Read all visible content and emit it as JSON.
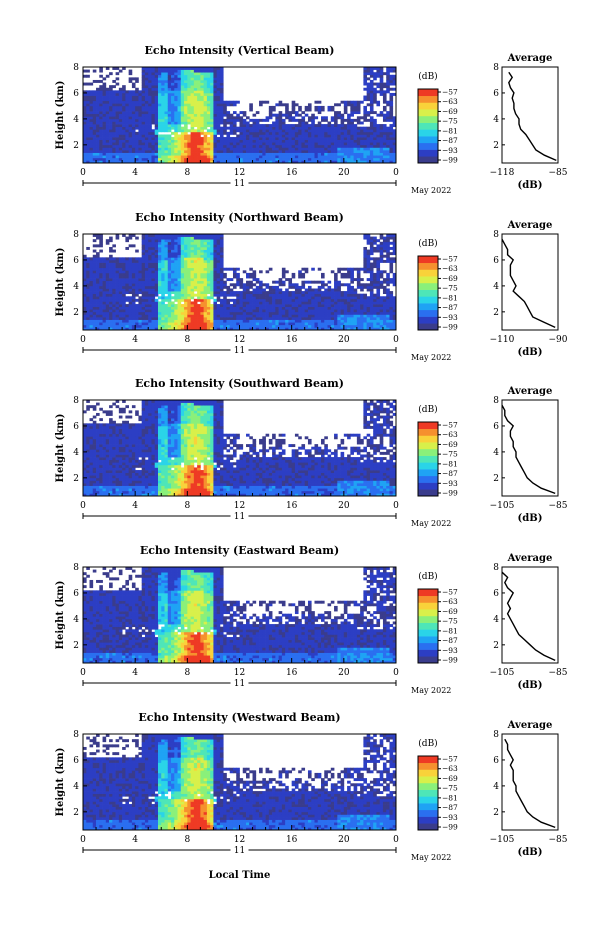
{
  "figure": {
    "panel_ylabel": "Height (km)",
    "xlabel": "Local Time",
    "date_label": "May 2022",
    "avg_xlabel": "(dB)",
    "colorbar_unit": "(dB)"
  },
  "colors": {
    "white": "#ffffff",
    "colormap": [
      "#3a3c8c",
      "#2c3ec4",
      "#2a6ff0",
      "#1fa3f4",
      "#2ad4e8",
      "#4ee6b8",
      "#8af07a",
      "#d8f04a",
      "#f9d23a",
      "#f6902e",
      "#ee3a24"
    ]
  },
  "chart_data": [
    {
      "type": "heatmap",
      "title": "Echo Intensity (Vertical Beam)",
      "ylabel": "Height (km)",
      "x_ticks": [
        "0",
        "4",
        "8",
        "12",
        "16",
        "20",
        "0"
      ],
      "x_sublabel": "11",
      "date_label": "May 2022",
      "xlim_hours": [
        0,
        24
      ],
      "ylim_km": [
        0.6,
        8
      ],
      "y_ticks": [
        "2",
        "4",
        "6",
        "8"
      ],
      "colorbar": {
        "unit": "(dB)",
        "ticks": [
          "−57",
          "−63",
          "−69",
          "−75",
          "−81",
          "−87",
          "−93",
          "−99"
        ]
      },
      "average_profile": {
        "title": "Average",
        "xlabel": "(dB)",
        "x_ticks": [
          "−118",
          "−85"
        ],
        "xlim": [
          -118,
          -85
        ],
        "y_ticks": [
          "2",
          "4",
          "6",
          "8"
        ],
        "height_km": [
          0.8,
          1.2,
          1.6,
          2.0,
          2.4,
          2.8,
          3.2,
          3.6,
          4.0,
          4.4,
          4.8,
          5.2,
          5.6,
          6.0,
          6.4,
          6.8,
          7.2,
          7.6
        ],
        "db": [
          -86,
          -93,
          -98,
          -100,
          -102,
          -104,
          -107,
          -108,
          -108,
          -110,
          -111,
          -111,
          -112,
          -111,
          -113,
          -114,
          -112,
          -114
        ]
      }
    },
    {
      "type": "heatmap",
      "title": "Echo Intensity (Northward Beam)",
      "ylabel": "Height (km)",
      "x_ticks": [
        "0",
        "4",
        "8",
        "12",
        "16",
        "20",
        "0"
      ],
      "x_sublabel": "11",
      "date_label": "May 2022",
      "xlim_hours": [
        0,
        24
      ],
      "ylim_km": [
        0.6,
        8
      ],
      "y_ticks": [
        "2",
        "4",
        "6",
        "8"
      ],
      "colorbar": {
        "unit": "(dB)",
        "ticks": [
          "−57",
          "−63",
          "−69",
          "−75",
          "−81",
          "−87",
          "−93",
          "−99"
        ]
      },
      "average_profile": {
        "title": "Average",
        "xlabel": "(dB)",
        "x_ticks": [
          "−110",
          "−90"
        ],
        "xlim": [
          -110,
          -90
        ],
        "y_ticks": [
          "2",
          "4",
          "6",
          "8"
        ],
        "height_km": [
          0.8,
          1.2,
          1.6,
          2.0,
          2.4,
          2.8,
          3.2,
          3.6,
          4.0,
          4.4,
          4.8,
          5.2,
          5.6,
          6.0,
          6.4,
          6.8,
          7.2,
          7.6
        ],
        "db": [
          -91,
          -95,
          -99,
          -100,
          -101,
          -102,
          -104,
          -106,
          -105,
          -106,
          -107,
          -107,
          -107,
          -106,
          -108,
          -108,
          -109,
          -110
        ]
      }
    },
    {
      "type": "heatmap",
      "title": "Echo Intensity (Southward Beam)",
      "ylabel": "Height (km)",
      "x_ticks": [
        "0",
        "4",
        "8",
        "12",
        "16",
        "20",
        "0"
      ],
      "x_sublabel": "11",
      "date_label": "May 2022",
      "xlim_hours": [
        0,
        24
      ],
      "ylim_km": [
        0.6,
        8
      ],
      "y_ticks": [
        "2",
        "4",
        "6",
        "8"
      ],
      "colorbar": {
        "unit": "(dB)",
        "ticks": [
          "−57",
          "−63",
          "−69",
          "−75",
          "−81",
          "−87",
          "−93",
          "−99"
        ]
      },
      "average_profile": {
        "title": "Average",
        "xlabel": "(dB)",
        "x_ticks": [
          "−105",
          "−85"
        ],
        "xlim": [
          -105,
          -85
        ],
        "y_ticks": [
          "2",
          "4",
          "6",
          "8"
        ],
        "height_km": [
          0.8,
          1.2,
          1.6,
          2.0,
          2.4,
          2.8,
          3.2,
          3.6,
          4.0,
          4.4,
          4.8,
          5.2,
          5.6,
          6.0,
          6.4,
          6.8,
          7.2,
          7.6
        ],
        "db": [
          -86,
          -91,
          -94,
          -96,
          -97,
          -98,
          -99,
          -100,
          -100,
          -101,
          -101,
          -102,
          -102,
          -101,
          -103,
          -104,
          -104,
          -105
        ]
      }
    },
    {
      "type": "heatmap",
      "title": "Echo Intensity (Eastward Beam)",
      "ylabel": "Height (km)",
      "x_ticks": [
        "0",
        "4",
        "8",
        "12",
        "16",
        "20",
        "0"
      ],
      "x_sublabel": "11",
      "date_label": "May 2022",
      "xlim_hours": [
        0,
        24
      ],
      "ylim_km": [
        0.6,
        8
      ],
      "y_ticks": [
        "2",
        "4",
        "6",
        "8"
      ],
      "colorbar": {
        "unit": "(dB)",
        "ticks": [
          "−57",
          "−63",
          "−69",
          "−75",
          "−81",
          "−87",
          "−93",
          "−99"
        ]
      },
      "average_profile": {
        "title": "Average",
        "xlabel": "(dB)",
        "x_ticks": [
          "−105",
          "−85"
        ],
        "xlim": [
          -105,
          -85
        ],
        "y_ticks": [
          "2",
          "4",
          "6",
          "8"
        ],
        "height_km": [
          0.8,
          1.2,
          1.6,
          2.0,
          2.4,
          2.8,
          3.2,
          3.6,
          4.0,
          4.4,
          4.8,
          5.2,
          5.6,
          6.0,
          6.4,
          6.8,
          7.2,
          7.6
        ],
        "db": [
          -86,
          -90,
          -93,
          -95,
          -97,
          -99,
          -100,
          -101,
          -102,
          -103,
          -102,
          -103,
          -102,
          -101,
          -103,
          -104,
          -103,
          -105
        ]
      }
    },
    {
      "type": "heatmap",
      "title": "Echo Intensity (Westward Beam)",
      "ylabel": "Height (km)",
      "x_ticks": [
        "0",
        "4",
        "8",
        "12",
        "16",
        "20",
        "0"
      ],
      "x_sublabel": "11",
      "date_label": "May 2022",
      "xlim_hours": [
        0,
        24
      ],
      "ylim_km": [
        0.6,
        8
      ],
      "y_ticks": [
        "2",
        "4",
        "6",
        "8"
      ],
      "colorbar": {
        "unit": "(dB)",
        "ticks": [
          "−57",
          "−63",
          "−69",
          "−75",
          "−81",
          "−87",
          "−93",
          "−99"
        ]
      },
      "average_profile": {
        "title": "Average",
        "xlabel": "(dB)",
        "x_ticks": [
          "−105",
          "−85"
        ],
        "xlim": [
          -105,
          -85
        ],
        "y_ticks": [
          "2",
          "4",
          "6",
          "8"
        ],
        "height_km": [
          0.8,
          1.2,
          1.6,
          2.0,
          2.4,
          2.8,
          3.2,
          3.6,
          4.0,
          4.4,
          4.8,
          5.2,
          5.6,
          6.0,
          6.4,
          6.8,
          7.2,
          7.6
        ],
        "db": [
          -86,
          -91,
          -94,
          -96,
          -97,
          -98,
          -99,
          -100,
          -100,
          -101,
          -101,
          -101,
          -102,
          -101,
          -102,
          -103,
          -103,
          -104
        ]
      }
    }
  ]
}
